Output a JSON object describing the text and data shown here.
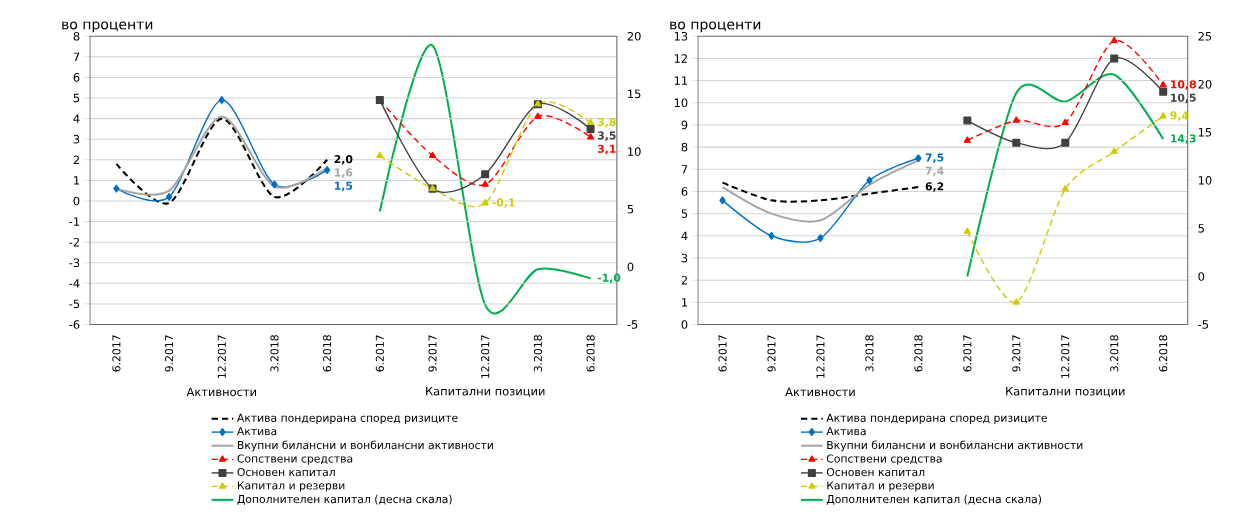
{
  "chart_data": [
    {
      "type": "line",
      "ylabel": "во проценти",
      "categories": [
        "6.2017",
        "9.2017",
        "12.2017",
        "3.2018",
        "6.2018",
        "6.2017",
        "9.2017",
        "12.2017",
        "3.2018",
        "6.2018"
      ],
      "annotations": [
        "Активности",
        "Капитални позиции"
      ],
      "ylim": [
        -6,
        8
      ],
      "yticks": [
        -6,
        -5,
        -4,
        -3,
        -2,
        -1,
        0,
        1,
        2,
        3,
        4,
        5,
        6,
        7,
        8
      ],
      "y2lim": [
        -5,
        20
      ],
      "y2ticks": [
        -5,
        0,
        5,
        10,
        15,
        20
      ],
      "grid": "y",
      "legend": "bottom",
      "series": [
        {
          "name": "Актива пондерирана според ризиците",
          "color": "#000000",
          "line_style": "dashed",
          "marker": "none",
          "values": [
            1.8,
            -0.1,
            4.0,
            0.2,
            2.0,
            null,
            null,
            null,
            null,
            null
          ],
          "value_labels": [
            null,
            null,
            null,
            null,
            "2,0",
            null,
            null,
            null,
            null,
            null
          ]
        },
        {
          "name": "Актива",
          "color": "#0070c0",
          "line_style": "solid",
          "marker": "diamond",
          "values": [
            0.6,
            0.2,
            4.9,
            0.8,
            1.5,
            null,
            null,
            null,
            null,
            null
          ],
          "value_labels": [
            null,
            null,
            null,
            null,
            "1,5",
            null,
            null,
            null,
            null,
            null
          ]
        },
        {
          "name": "Вкупни билансни и вонбилансни активности",
          "color": "#a6a6a6",
          "line_style": "solid",
          "marker": "none",
          "values": [
            0.6,
            0.5,
            4.1,
            0.7,
            1.6,
            null,
            null,
            null,
            null,
            null
          ],
          "value_labels": [
            null,
            null,
            null,
            null,
            "1,6",
            null,
            null,
            null,
            null,
            null
          ]
        },
        {
          "name": "Сопствени средства",
          "color": "#ff0000",
          "line_style": "dashed",
          "marker": "triangle",
          "values": [
            null,
            null,
            null,
            null,
            null,
            4.9,
            2.2,
            0.8,
            4.1,
            3.1
          ],
          "value_labels": [
            null,
            null,
            null,
            null,
            null,
            null,
            null,
            null,
            null,
            "3,1"
          ]
        },
        {
          "name": "Основен капитал",
          "color": "#404040",
          "line_style": "solid",
          "marker": "square",
          "values": [
            null,
            null,
            null,
            null,
            null,
            4.9,
            0.6,
            1.3,
            4.7,
            3.5
          ],
          "value_labels": [
            null,
            null,
            null,
            null,
            null,
            null,
            null,
            null,
            null,
            "3,5"
          ]
        },
        {
          "name": "Капитал и резерви",
          "color": "#cccc00",
          "line_style": "dashed",
          "marker": "triangle",
          "values": [
            null,
            null,
            null,
            null,
            null,
            2.2,
            0.6,
            -0.1,
            4.7,
            3.8
          ],
          "value_labels": [
            null,
            null,
            null,
            null,
            null,
            null,
            null,
            "-0,1",
            null,
            "3,8"
          ]
        },
        {
          "name": "Дополнителен капитал (десна скала)",
          "color": "#00b050",
          "line_style": "solid",
          "marker": "none",
          "axis": "y2",
          "values": [
            null,
            null,
            null,
            null,
            null,
            4.8,
            19.2,
            -3.3,
            -0.2,
            -1.0
          ],
          "value_labels": [
            null,
            null,
            null,
            null,
            null,
            null,
            null,
            null,
            null,
            "-1,0"
          ]
        }
      ]
    },
    {
      "type": "line",
      "ylabel": "во проценти",
      "categories": [
        "6.2017",
        "9.2017",
        "12.2017",
        "3.2018",
        "6.2018",
        "6.2017",
        "9.2017",
        "12.2017",
        "3.2018",
        "6.2018"
      ],
      "annotations": [
        "Активности",
        "Капитални позиции"
      ],
      "ylim": [
        0,
        13
      ],
      "yticks": [
        0,
        1,
        2,
        3,
        4,
        5,
        6,
        7,
        8,
        9,
        10,
        11,
        12,
        13
      ],
      "y2lim": [
        -5,
        25
      ],
      "y2ticks": [
        -5,
        0,
        5,
        10,
        15,
        20,
        25
      ],
      "grid": "y",
      "legend": "bottom",
      "series": [
        {
          "name": "Актива пондерирана според ризиците",
          "color": "#000000",
          "line_style": "dashed",
          "marker": "none",
          "values": [
            6.4,
            5.6,
            5.6,
            5.9,
            6.2,
            null,
            null,
            null,
            null,
            null
          ],
          "value_labels": [
            null,
            null,
            null,
            null,
            "6,2",
            null,
            null,
            null,
            null,
            null
          ]
        },
        {
          "name": "Актива",
          "color": "#0070c0",
          "line_style": "solid",
          "marker": "diamond",
          "values": [
            5.6,
            4.0,
            3.9,
            6.5,
            7.5,
            null,
            null,
            null,
            null,
            null
          ],
          "value_labels": [
            null,
            null,
            null,
            null,
            "7,5",
            null,
            null,
            null,
            null,
            null
          ]
        },
        {
          "name": "Вкупни билансни и вонбилансни активности",
          "color": "#a6a6a6",
          "line_style": "solid",
          "marker": "none",
          "values": [
            6.2,
            5.0,
            4.7,
            6.3,
            7.4,
            null,
            null,
            null,
            null,
            null
          ],
          "value_labels": [
            null,
            null,
            null,
            null,
            "7,4",
            null,
            null,
            null,
            null,
            null
          ]
        },
        {
          "name": "Сопствени средства",
          "color": "#ff0000",
          "line_style": "dashed",
          "marker": "triangle",
          "values": [
            null,
            null,
            null,
            null,
            null,
            8.3,
            9.2,
            9.1,
            12.8,
            10.8
          ],
          "value_labels": [
            null,
            null,
            null,
            null,
            null,
            null,
            null,
            null,
            null,
            "10,8"
          ]
        },
        {
          "name": "Основен капитал",
          "color": "#404040",
          "line_style": "solid",
          "marker": "square",
          "values": [
            null,
            null,
            null,
            null,
            null,
            9.2,
            8.2,
            8.2,
            12.0,
            10.5
          ],
          "value_labels": [
            null,
            null,
            null,
            null,
            null,
            null,
            null,
            null,
            null,
            "10,5"
          ]
        },
        {
          "name": "Капитал и резерви",
          "color": "#cccc00",
          "line_style": "dashed",
          "marker": "triangle",
          "values": [
            null,
            null,
            null,
            null,
            null,
            4.2,
            1.0,
            6.1,
            7.8,
            9.4
          ],
          "value_labels": [
            null,
            null,
            null,
            null,
            null,
            null,
            null,
            null,
            null,
            "9,4"
          ]
        },
        {
          "name": "Дополнителен капитал (десна скала)",
          "color": "#00b050",
          "line_style": "solid",
          "marker": "none",
          "axis": "y2",
          "values": [
            null,
            null,
            null,
            null,
            null,
            0.0,
            19.1,
            18.2,
            21.0,
            14.3
          ],
          "value_labels": [
            null,
            null,
            null,
            null,
            null,
            null,
            null,
            null,
            null,
            "14,3"
          ]
        }
      ]
    }
  ]
}
